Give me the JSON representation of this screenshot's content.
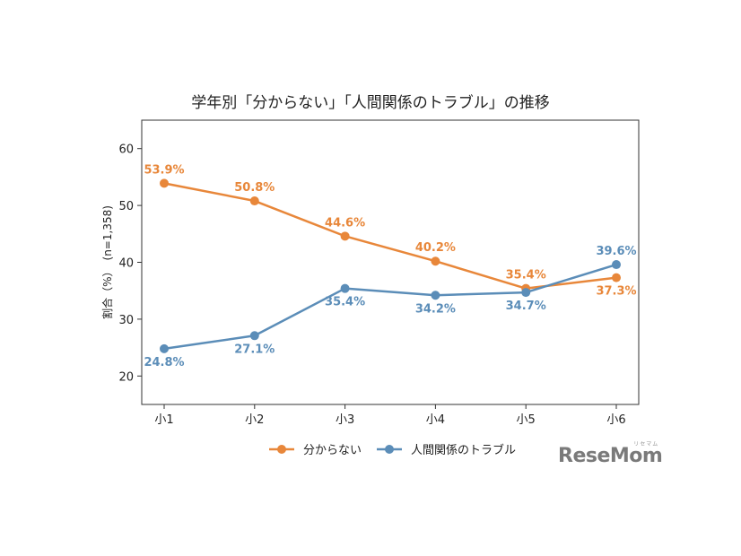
{
  "chart_data": {
    "type": "line",
    "title": "学年別「分からない」「人間関係のトラブル」の推移",
    "ylabel": "割合（%）　(n=1,358)",
    "xlabel": "",
    "categories": [
      "小1",
      "小2",
      "小3",
      "小4",
      "小5",
      "小6"
    ],
    "ylim": [
      15,
      65
    ],
    "yticks": [
      20,
      30,
      40,
      50,
      60
    ],
    "grid": false,
    "legend_position": "bottom",
    "series": [
      {
        "name": "分からない",
        "color": "#e8873a",
        "values": [
          53.9,
          50.8,
          44.6,
          40.2,
          35.4,
          37.3
        ],
        "labels": [
          "53.9%",
          "50.8%",
          "44.6%",
          "40.2%",
          "35.4%",
          "37.3%"
        ]
      },
      {
        "name": "人間関係のトラブル",
        "color": "#5b8db8",
        "values": [
          24.8,
          27.1,
          35.4,
          34.2,
          34.7,
          39.6
        ],
        "labels": [
          "24.8%",
          "27.1%",
          "35.4%",
          "34.2%",
          "34.7%",
          "39.6%"
        ]
      }
    ]
  },
  "logo": {
    "text": "ReseMom",
    "ruby": "リセマム"
  }
}
